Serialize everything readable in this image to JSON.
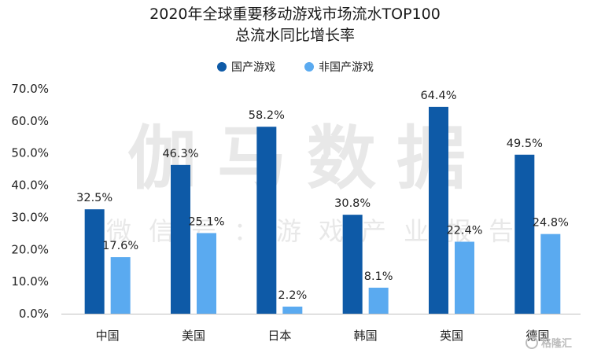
{
  "chart_data": {
    "type": "bar",
    "title": "2020年全球重要移动游戏市场流水TOP100",
    "subtitle": "总流水同比增长率",
    "categories": [
      "中国",
      "美国",
      "日本",
      "韩国",
      "英国",
      "德国"
    ],
    "series": [
      {
        "name": "国产游戏",
        "color": "#0e5aa7",
        "values": [
          32.5,
          46.3,
          58.2,
          30.8,
          64.4,
          49.5
        ],
        "labels": [
          "32.5%",
          "46.3%",
          "58.2%",
          "30.8%",
          "64.4%",
          "49.5%"
        ]
      },
      {
        "name": "非国产游戏",
        "color": "#5aaaf0",
        "values": [
          17.6,
          25.1,
          2.2,
          8.1,
          22.4,
          24.8
        ],
        "labels": [
          "17.6%",
          "25.1%",
          "2.2%",
          "8.1%",
          "22.4%",
          "24.8%"
        ]
      }
    ],
    "ylim": [
      0,
      70
    ],
    "yticks": [
      0,
      10,
      20,
      30,
      40,
      50,
      60,
      70
    ],
    "ytick_labels": [
      "0.0%",
      "10.0%",
      "20.0%",
      "30.0%",
      "40.0%",
      "50.0%",
      "60.0%",
      "70.0%"
    ],
    "xlabel": "",
    "ylabel": "",
    "grid": false,
    "legend_position": "top-center"
  },
  "watermark": {
    "main": "伽马数据",
    "sub": "微信号：游戏产业报告"
  },
  "corner_mark": "格隆汇"
}
